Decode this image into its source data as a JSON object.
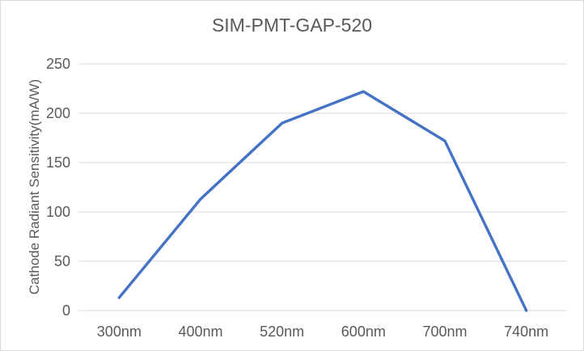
{
  "frame": {
    "background": "#ffffff",
    "border_color": "#d9d9d9"
  },
  "chart_data": {
    "type": "line",
    "title": "SIM-PMT-GAP-520",
    "ylabel": "Cathode Radiant Sensitivity(mA/W)",
    "xlabel": "",
    "categories": [
      "300nm",
      "400nm",
      "520nm",
      "600nm",
      "700nm",
      "740nm"
    ],
    "values": [
      13,
      113,
      190,
      222,
      172,
      0
    ],
    "ylim": [
      0,
      250
    ],
    "yticks": [
      0,
      50,
      100,
      150,
      200,
      250
    ],
    "grid": true,
    "legend": false,
    "colors": {
      "line": "#4472C4",
      "gridline": "#D9D9D9",
      "text": "#595959"
    }
  }
}
